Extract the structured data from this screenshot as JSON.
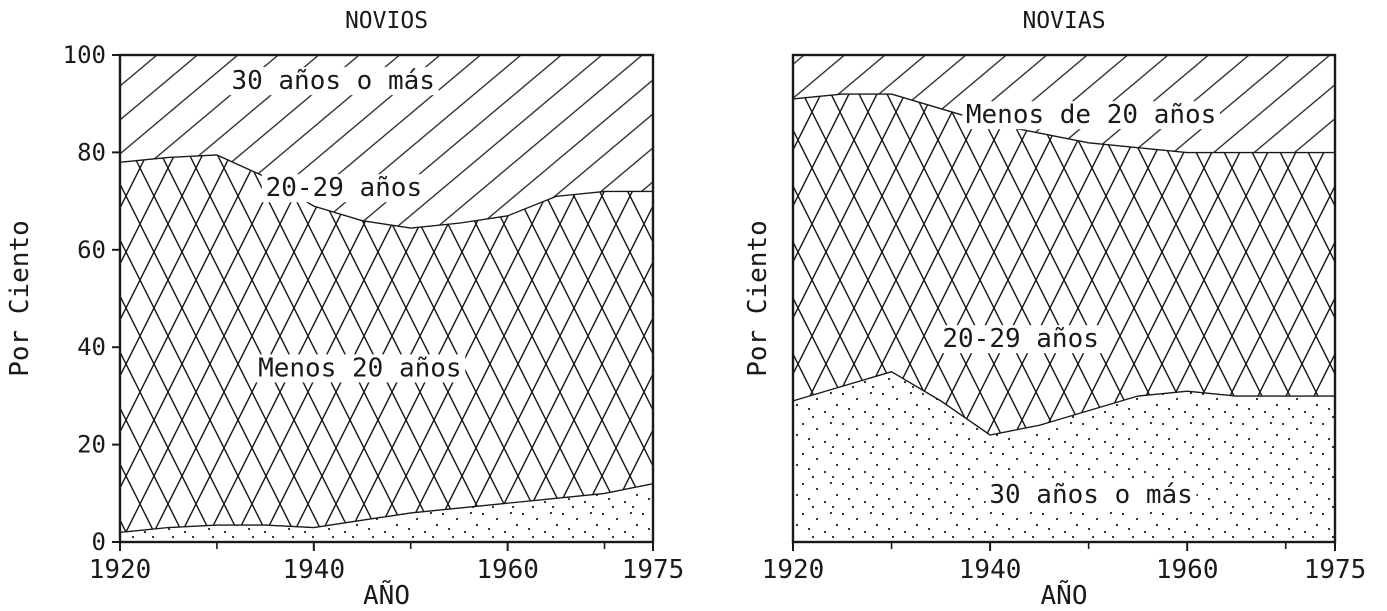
{
  "chart_data": [
    {
      "type": "area",
      "stacked": true,
      "title": "NOVIOS",
      "xlabel": "AÑO",
      "ylabel": "Por Ciento",
      "xlim": [
        1920,
        1975
      ],
      "ylim": [
        0,
        100
      ],
      "x_ticks": [
        "1920",
        "1940",
        "1960",
        "1975"
      ],
      "y_ticks": [
        "0",
        "20",
        "40",
        "60",
        "80",
        "100"
      ],
      "grid": false,
      "x": [
        1920,
        1925,
        1930,
        1935,
        1940,
        1945,
        1950,
        1955,
        1960,
        1965,
        1970,
        1975
      ],
      "series": [
        {
          "name": "Menos 20 años",
          "pattern": "dots",
          "values": [
            2,
            3,
            3.5,
            3.5,
            3,
            4.5,
            6,
            7,
            8,
            9,
            10,
            12
          ]
        },
        {
          "name": "20-29 años",
          "pattern": "crosshatch",
          "values": [
            76,
            76,
            76,
            71.5,
            66,
            61.5,
            58.5,
            58.5,
            59,
            62,
            62,
            60
          ]
        },
        {
          "name": "30 años o más",
          "pattern": "diagonal",
          "values": [
            22,
            21,
            20.5,
            25,
            31,
            34,
            35.5,
            34.5,
            33,
            29,
            28,
            28
          ]
        }
      ]
    },
    {
      "type": "area",
      "stacked": true,
      "title": "NOVIAS",
      "xlabel": "AÑO",
      "ylabel": "Por Ciento",
      "xlim": [
        1920,
        1975
      ],
      "ylim": [
        0,
        100
      ],
      "x_ticks": [
        "1920",
        "1940",
        "1960",
        "1975"
      ],
      "y_ticks": [],
      "grid": false,
      "x": [
        1920,
        1925,
        1930,
        1935,
        1940,
        1945,
        1950,
        1955,
        1960,
        1965,
        1970,
        1975
      ],
      "series": [
        {
          "name": "Menos de 20 años",
          "pattern": "dots",
          "values": [
            29,
            32,
            35,
            29,
            22,
            24,
            27,
            30,
            31,
            30,
            30,
            30
          ]
        },
        {
          "name": "20-29 años",
          "pattern": "crosshatch",
          "values": [
            62,
            60,
            57,
            60,
            64,
            60,
            55,
            51,
            49,
            50,
            50,
            50
          ]
        },
        {
          "name": "30 años o más",
          "pattern": "diagonal",
          "values": [
            9,
            8,
            8,
            11,
            14,
            16,
            18,
            19,
            20,
            20,
            20,
            20
          ]
        }
      ]
    }
  ]
}
